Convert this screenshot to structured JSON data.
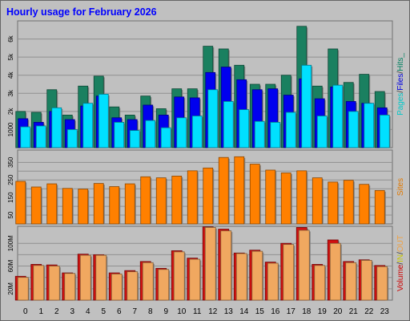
{
  "chart_data": [
    {
      "type": "bar",
      "panel": "hits",
      "title": "Hourly usage for February 2026",
      "ylabel": [
        {
          "text": "Pages",
          "color": "#00c8c8"
        },
        {
          "text": "/",
          "color": "#333333"
        },
        {
          "text": "Files",
          "color": "#0000e0"
        },
        {
          "text": "/",
          "color": "#333333"
        },
        {
          "text": "Hits_",
          "color": "#008060"
        }
      ],
      "ylim": [
        0,
        7000
      ],
      "yticks": [
        1000,
        2000,
        3000,
        4000,
        5000,
        6000
      ],
      "yticklabels": [
        "1000",
        "2k",
        "3k",
        "4k",
        "5k",
        "6k"
      ],
      "categories": [
        "0",
        "1",
        "2",
        "3",
        "4",
        "5",
        "6",
        "7",
        "8",
        "9",
        "10",
        "11",
        "12",
        "13",
        "14",
        "15",
        "16",
        "17",
        "18",
        "19",
        "20",
        "21",
        "22",
        "23"
      ],
      "series": [
        {
          "name": "Hits",
          "color": "#1a8060",
          "values": [
            2000,
            1950,
            3200,
            1800,
            3400,
            3950,
            2250,
            1800,
            2850,
            2150,
            3250,
            3250,
            5600,
            5450,
            4550,
            3500,
            3500,
            4000,
            6700,
            3400,
            5450,
            3600,
            4050,
            3100
          ]
        },
        {
          "name": "Files",
          "color": "#0000ee",
          "values": [
            1600,
            1400,
            2000,
            1550,
            2300,
            2850,
            1650,
            1550,
            2350,
            1800,
            2800,
            2750,
            4150,
            4450,
            3750,
            3200,
            3250,
            2900,
            3800,
            2700,
            3350,
            2550,
            2450,
            2200
          ]
        },
        {
          "name": "Pages",
          "color": "#00e0ff",
          "values": [
            1150,
            1200,
            2200,
            1000,
            2450,
            2950,
            1400,
            950,
            1500,
            1100,
            1650,
            1750,
            3200,
            2550,
            2100,
            1450,
            1400,
            1950,
            4550,
            1750,
            3450,
            2000,
            2450,
            1800
          ]
        }
      ]
    },
    {
      "type": "bar",
      "panel": "sites",
      "ylabel": [
        {
          "text": "Sites",
          "color": "#e07800"
        }
      ],
      "ylim": [
        0,
        420
      ],
      "yticks": [
        50,
        100,
        150,
        200,
        250,
        300,
        350
      ],
      "yticklabels": [
        "50",
        "",
        "150",
        "",
        "250",
        "",
        "350"
      ],
      "categories": [
        "0",
        "1",
        "2",
        "3",
        "4",
        "5",
        "6",
        "7",
        "8",
        "9",
        "10",
        "11",
        "12",
        "13",
        "14",
        "15",
        "16",
        "17",
        "18",
        "19",
        "20",
        "21",
        "22",
        "23"
      ],
      "series": [
        {
          "name": "Sites",
          "color": "#ff8000",
          "values": [
            242,
            210,
            228,
            202,
            198,
            230,
            212,
            228,
            268,
            262,
            272,
            302,
            318,
            378,
            382,
            340,
            306,
            290,
            302,
            262,
            238,
            248,
            225,
            190
          ]
        }
      ]
    },
    {
      "type": "bar",
      "panel": "volume",
      "ylabel": [
        {
          "text": "Volume",
          "color": "#cc0000"
        },
        {
          "text": "/",
          "color": "#333333"
        },
        {
          "text": "IN",
          "color": "#c8c800"
        },
        {
          "text": "/",
          "color": "#333333"
        },
        {
          "text": "OUT",
          "color": "#f0a040"
        }
      ],
      "ylim": [
        0,
        130
      ],
      "yticks": [
        20,
        40,
        60,
        80,
        100
      ],
      "yticklabels": [
        "20M",
        "",
        "60M",
        "",
        "100M"
      ],
      "categories": [
        "0",
        "1",
        "2",
        "3",
        "4",
        "5",
        "6",
        "7",
        "8",
        "9",
        "10",
        "11",
        "12",
        "13",
        "14",
        "15",
        "16",
        "17",
        "18",
        "19",
        "20",
        "21",
        "22",
        "23"
      ],
      "series": [
        {
          "name": "Volume",
          "color": "#d01010",
          "values": [
            42,
            63,
            62,
            48,
            81,
            80,
            48,
            52,
            68,
            56,
            87,
            74,
            129,
            125,
            83,
            88,
            67,
            100,
            128,
            63,
            106,
            68,
            71,
            61
          ]
        },
        {
          "name": "OUT",
          "color": "#f0a860",
          "values": [
            40,
            61,
            60,
            47,
            79,
            79,
            46,
            50,
            66,
            54,
            85,
            72,
            128,
            122,
            82,
            86,
            65,
            98,
            123,
            61,
            100,
            66,
            70,
            59
          ]
        }
      ]
    }
  ]
}
